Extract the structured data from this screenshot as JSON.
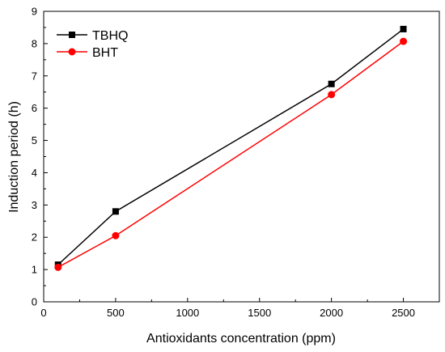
{
  "chart_data": {
    "type": "line",
    "xlabel": "Antioxidants concentration (ppm)",
    "ylabel": "Induction period (h)",
    "xlim": [
      0,
      2750
    ],
    "ylim": [
      0,
      9
    ],
    "xticks": [
      0,
      500,
      1000,
      1500,
      2000,
      2500
    ],
    "yticks": [
      0,
      1,
      2,
      3,
      4,
      5,
      6,
      7,
      8,
      9
    ],
    "grid": false,
    "legend_position": "top-left",
    "series": [
      {
        "name": "TBHQ",
        "color": "#000000",
        "marker": "square",
        "x": [
          100,
          500,
          2000,
          2500
        ],
        "y": [
          1.15,
          2.8,
          6.75,
          8.45
        ]
      },
      {
        "name": "BHT",
        "color": "#ff0000",
        "marker": "circle",
        "x": [
          100,
          500,
          2000,
          2500
        ],
        "y": [
          1.07,
          2.05,
          6.42,
          8.07
        ]
      }
    ]
  }
}
